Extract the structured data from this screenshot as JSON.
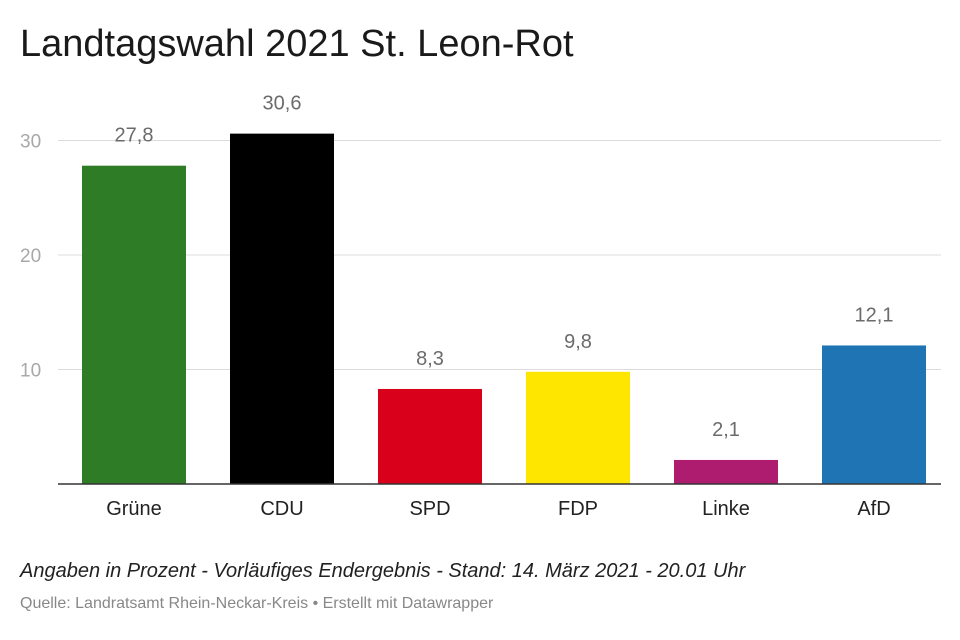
{
  "chart_data": {
    "type": "bar",
    "title": "Landtagswahl 2021 St. Leon-Rot",
    "categories": [
      "Grüne",
      "CDU",
      "SPD",
      "FDP",
      "Linke",
      "AfD"
    ],
    "values": [
      27.8,
      30.6,
      8.3,
      9.8,
      2.1,
      12.1
    ],
    "value_labels": [
      "27,8",
      "30,6",
      "8,3",
      "9,8",
      "2,1",
      "12,1"
    ],
    "colors": [
      "#2e7d26",
      "#000000",
      "#d9001c",
      "#ffe600",
      "#ad1c6e",
      "#1f75b4"
    ],
    "yticks": [
      10,
      20,
      30
    ],
    "ylim": [
      0,
      30
    ],
    "grid": true,
    "xlabel": "",
    "ylabel": ""
  },
  "notes": "Angaben in Prozent - Vorläufiges Endergebnis - Stand: 14. März 2021 - 20.01 Uhr",
  "source": "Quelle: Landratsamt Rhein-Neckar-Kreis • Erstellt mit Datawrapper"
}
